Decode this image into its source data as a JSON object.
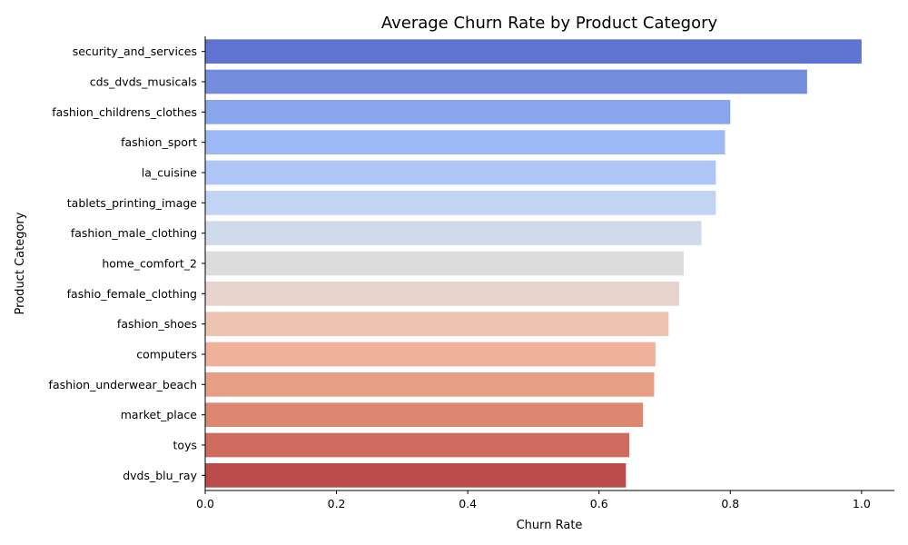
{
  "chart_data": {
    "type": "bar",
    "orientation": "horizontal",
    "title": "Average Churn Rate by Product Category",
    "xlabel": "Churn Rate",
    "ylabel": "Product Category",
    "xlim": [
      0,
      1.05
    ],
    "xticks": [
      0.0,
      0.2,
      0.4,
      0.6,
      0.8,
      1.0
    ],
    "xtick_labels": [
      "0.0",
      "0.2",
      "0.4",
      "0.6",
      "0.8",
      "1.0"
    ],
    "grid": false,
    "legend": "none",
    "categories": [
      "security_and_services",
      "cds_dvds_musicals",
      "fashion_childrens_clothes",
      "fashion_sport",
      "la_cuisine",
      "tablets_printing_image",
      "fashion_male_clothing",
      "home_comfort_2",
      "fashio_female_clothing",
      "fashion_shoes",
      "computers",
      "fashion_underwear_beach",
      "market_place",
      "toys",
      "dvds_blu_ray"
    ],
    "values": [
      1.0,
      0.917,
      0.8,
      0.792,
      0.778,
      0.778,
      0.756,
      0.729,
      0.722,
      0.706,
      0.686,
      0.684,
      0.667,
      0.646,
      0.641
    ],
    "colors": [
      "#5e74ce",
      "#748ddd",
      "#89a5ec",
      "#9cb8f5",
      "#afc7f7",
      "#c2d4f4",
      "#d1daea",
      "#dcdcdc",
      "#e6d3cb",
      "#ecc4b1",
      "#efb19a",
      "#e69e85",
      "#dd8771",
      "#cf6a5e",
      "#b94c4a"
    ]
  }
}
